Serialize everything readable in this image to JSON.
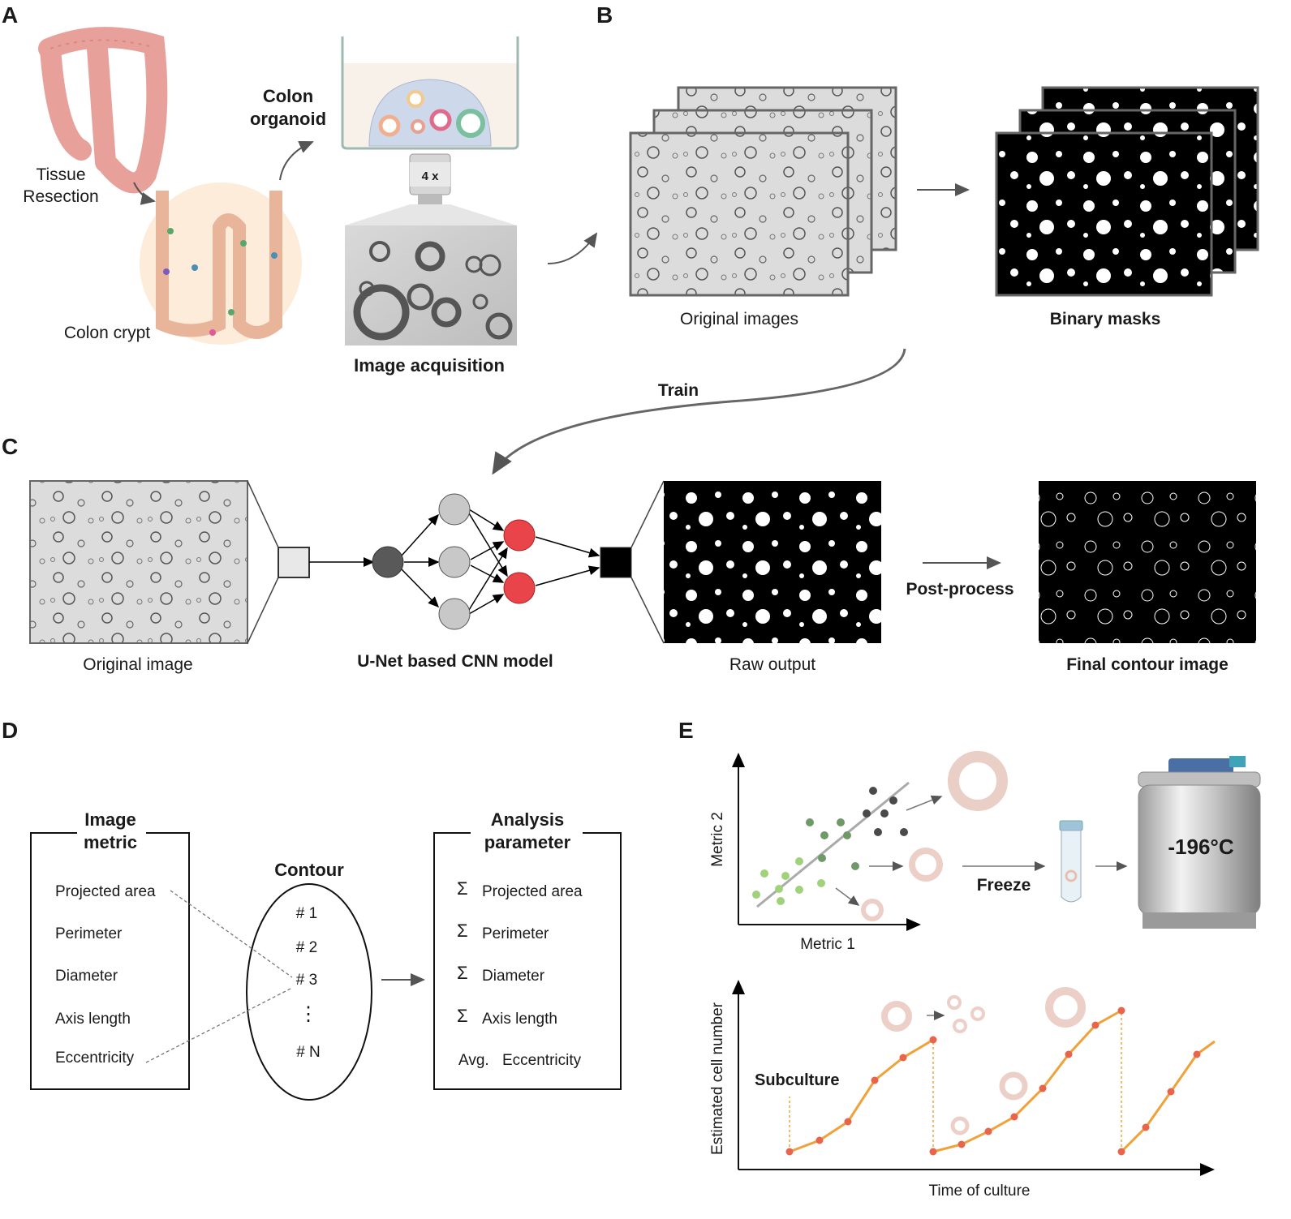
{
  "panels": {
    "a": "A",
    "b": "B",
    "c": "C",
    "d": "D",
    "e": "E"
  },
  "panel_a": {
    "tissue_line1": "Tissue",
    "tissue_line2": "Resection",
    "crypt": "Colon crypt",
    "organoid_line1": "Colon",
    "organoid_line2": "organoid",
    "objective": "4 x",
    "acquisition": "Image acquisition"
  },
  "panel_b": {
    "original": "Original images",
    "masks": "Binary masks",
    "train": "Train"
  },
  "panel_c": {
    "original": "Original image",
    "model": "U-Net based CNN model",
    "raw": "Raw output",
    "postprocess": "Post-process",
    "final": "Final contour image"
  },
  "panel_d": {
    "metric_title_1": "Image",
    "metric_title_2": "metric",
    "metrics": [
      "Projected area",
      "Perimeter",
      "Diameter",
      "Axis length",
      "Eccentricity"
    ],
    "contour_title": "Contour",
    "contours": [
      "# 1",
      "# 2",
      "# 3",
      "⋮",
      "# N"
    ],
    "analysis_title_1": "Analysis",
    "analysis_title_2": "parameter",
    "params": [
      {
        "sym": "Σ",
        "label": "Projected area"
      },
      {
        "sym": "Σ",
        "label": "Perimeter"
      },
      {
        "sym": "Σ",
        "label": "Diameter"
      },
      {
        "sym": "Σ",
        "label": "Axis length"
      },
      {
        "sym": "Avg.",
        "label": "Eccentricity"
      }
    ]
  },
  "panel_e": {
    "y1": "Metric 2",
    "x1": "Metric 1",
    "freeze": "Freeze",
    "temp": "-196°C",
    "y2": "Estimated cell number",
    "x2": "Time of culture",
    "subculture": "Subculture"
  },
  "colors": {
    "node_dark": "#595959",
    "node_grey": "#c8c8c8",
    "node_red": "#e8444a",
    "growth": "#f0a23a",
    "growth_dot": "#e8644a",
    "green_light": "#9fd27a",
    "green_dark": "#6f9a68",
    "scatter_dark": "#4a4a4a",
    "colon": "#e8a09a"
  }
}
